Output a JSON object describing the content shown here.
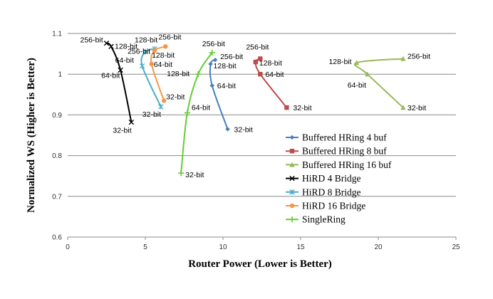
{
  "chart_data": {
    "type": "line",
    "title": "",
    "xlabel": "Router Power (Lower is Better)",
    "ylabel": "Normalized WS   (Higher is Better)",
    "xlim": [
      0,
      25
    ],
    "ylim": [
      0.6,
      1.1
    ],
    "xticks": [
      "0",
      "5",
      "10",
      "15",
      "20",
      "25"
    ],
    "yticks": [
      "0.6",
      "0.7",
      "0.8",
      "0.9",
      "1",
      "1.1"
    ],
    "grid": "horizontal",
    "legend_position": "right",
    "series": [
      {
        "name": "Buffered HRing 4 buf",
        "color": "#4A7EBB",
        "marker": "diamond",
        "points": [
          {
            "x": 10.3,
            "y": 0.865,
            "label": "32-bit"
          },
          {
            "x": 9.3,
            "y": 0.972,
            "label": "64-bit"
          },
          {
            "x": 9.2,
            "y": 1.025,
            "label": "128-bit"
          },
          {
            "x": 9.5,
            "y": 1.035,
            "label": "256-bit"
          }
        ]
      },
      {
        "name": "Buffered HRing 8 buf",
        "color": "#BE4B48",
        "marker": "square",
        "points": [
          {
            "x": 14.1,
            "y": 0.918,
            "label": "32-bit"
          },
          {
            "x": 12.4,
            "y": 1.0,
            "label": "64-bit"
          },
          {
            "x": 12.1,
            "y": 1.03,
            "label": "128-bit"
          },
          {
            "x": 12.4,
            "y": 1.038,
            "label": "256-bit"
          }
        ]
      },
      {
        "name": "Buffered HRing 16 buf",
        "color": "#98B954",
        "marker": "triangle",
        "points": [
          {
            "x": 21.6,
            "y": 0.918,
            "label": "32-bit"
          },
          {
            "x": 19.3,
            "y": 1.0,
            "label": "64-bit"
          },
          {
            "x": 18.6,
            "y": 1.028,
            "label": "128-bit"
          },
          {
            "x": 21.6,
            "y": 1.038,
            "label": "256-bit"
          }
        ]
      },
      {
        "name": "HiRD 4 Bridge",
        "color": "#000000",
        "marker": "x",
        "points": [
          {
            "x": 4.1,
            "y": 0.882,
            "label": "32-bit"
          },
          {
            "x": 3.4,
            "y": 1.01,
            "label": "64-bit"
          },
          {
            "x": 2.8,
            "y": 1.068,
            "label": "128-bit"
          },
          {
            "x": 2.5,
            "y": 1.076,
            "label": "256-bit"
          }
        ]
      },
      {
        "name": "HiRD 8 Bridge",
        "color": "#4BACC6",
        "marker": "star",
        "points": [
          {
            "x": 6.0,
            "y": 0.92,
            "label": "32-bit"
          },
          {
            "x": 4.8,
            "y": 1.02,
            "label": "64-bit"
          },
          {
            "x": 5.0,
            "y": 1.055,
            "label": "128-bit"
          },
          {
            "x": 5.6,
            "y": 1.062,
            "label": "256-bit"
          }
        ]
      },
      {
        "name": "HiRD 16 Bridge",
        "color": "#F79646",
        "marker": "circle",
        "points": [
          {
            "x": 6.2,
            "y": 0.935,
            "label": "32-bit"
          },
          {
            "x": 5.4,
            "y": 1.025,
            "label": "64-bit"
          },
          {
            "x": 5.6,
            "y": 1.058,
            "label": "128-bit"
          },
          {
            "x": 6.3,
            "y": 1.068,
            "label": "256-bit"
          }
        ]
      },
      {
        "name": "SingleRing",
        "color": "#66CC33",
        "marker": "plus",
        "points": [
          {
            "x": 7.3,
            "y": 0.757,
            "label": "32-bit"
          },
          {
            "x": 7.7,
            "y": 0.905,
            "label": "64-bit"
          },
          {
            "x": 8.4,
            "y": 1.0,
            "label": "128-bit"
          },
          {
            "x": 9.3,
            "y": 1.053,
            "label": "256-bit"
          }
        ]
      }
    ]
  }
}
